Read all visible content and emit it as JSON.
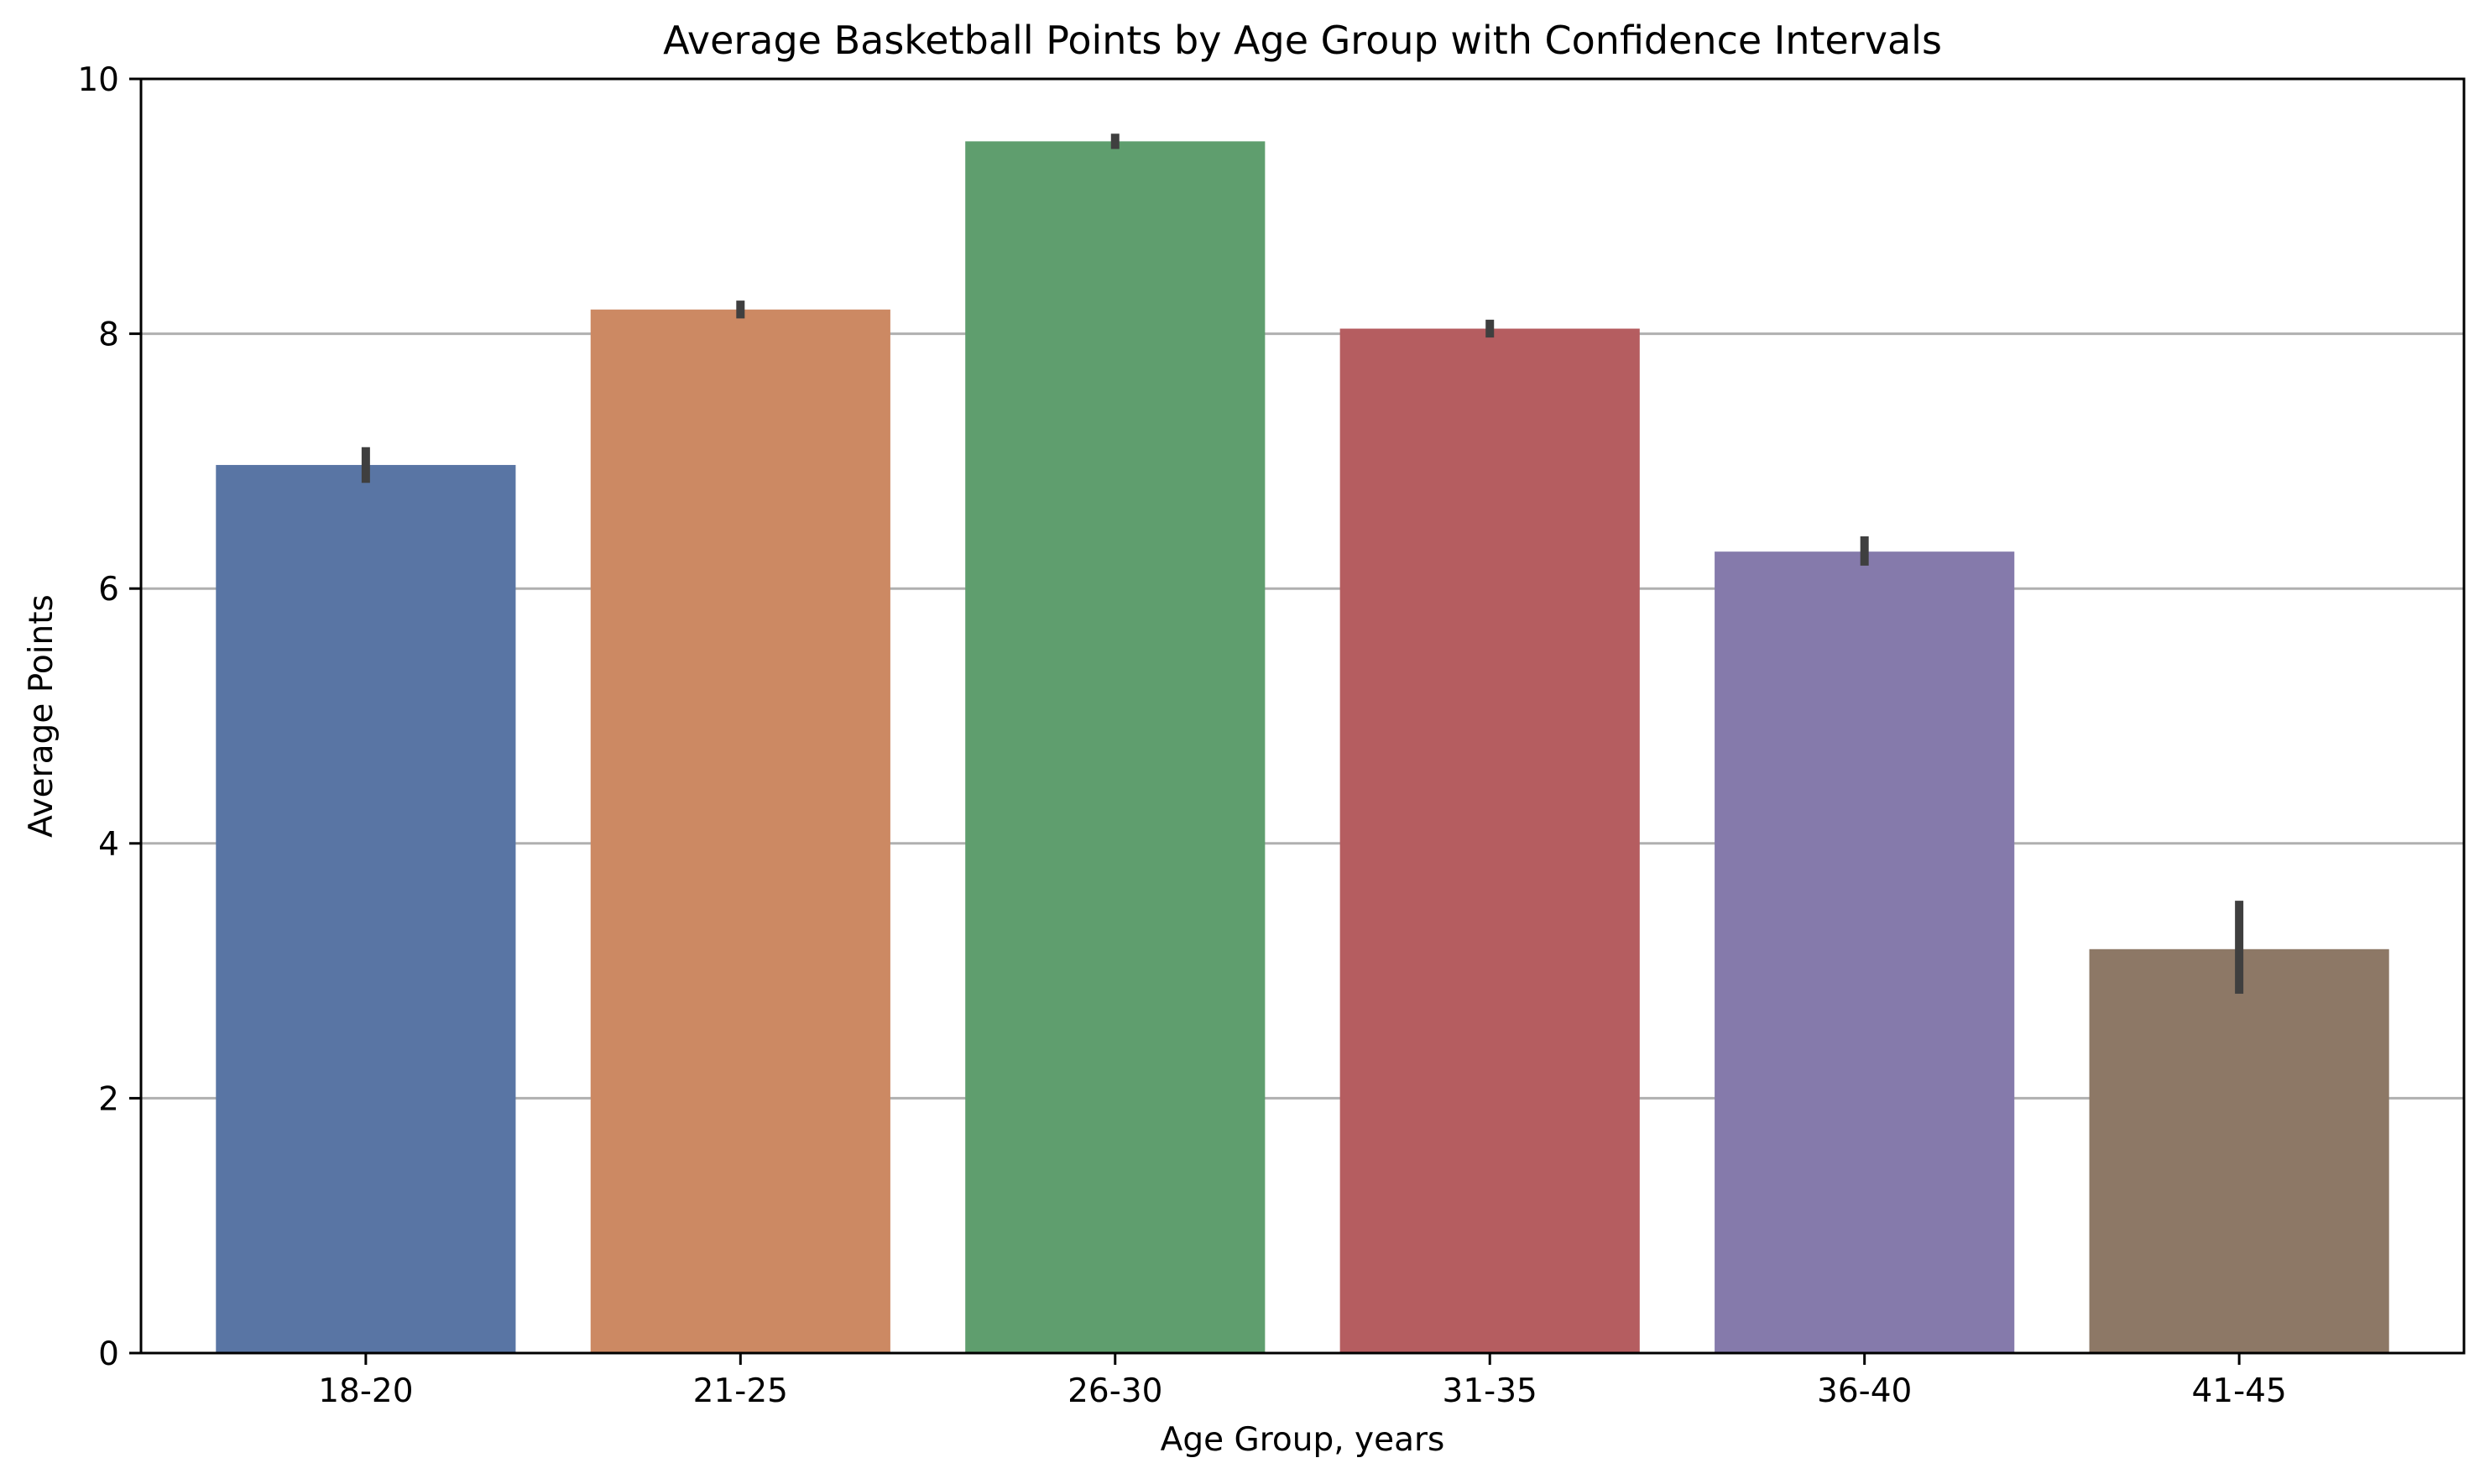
{
  "chart_data": {
    "type": "bar",
    "title": "Average Basketball Points by Age Group with Confidence Intervals",
    "xlabel": "Age Group, years",
    "ylabel": "Average Points",
    "ylim": [
      0,
      10
    ],
    "yticks": [
      0,
      2,
      4,
      6,
      8,
      10
    ],
    "ytick_labels": [
      "0",
      "2",
      "4",
      "6",
      "8",
      "10"
    ],
    "grid": "y-axis",
    "categories": [
      "18-20",
      "21-25",
      "26-30",
      "31-35",
      "36-40",
      "41-45"
    ],
    "values": [
      6.97,
      8.19,
      9.51,
      8.04,
      6.29,
      3.17
    ],
    "ci_lower": [
      6.83,
      8.12,
      9.45,
      7.97,
      6.18,
      2.82
    ],
    "ci_upper": [
      7.11,
      8.26,
      9.57,
      8.11,
      6.41,
      3.55
    ],
    "colors": [
      "#5975a4",
      "#cc8963",
      "#5f9e6e",
      "#b55d60",
      "#857aab",
      "#8d7866"
    ],
    "error_bar_color": "#3f3f3f",
    "grid_color": "#b0b0b0"
  }
}
